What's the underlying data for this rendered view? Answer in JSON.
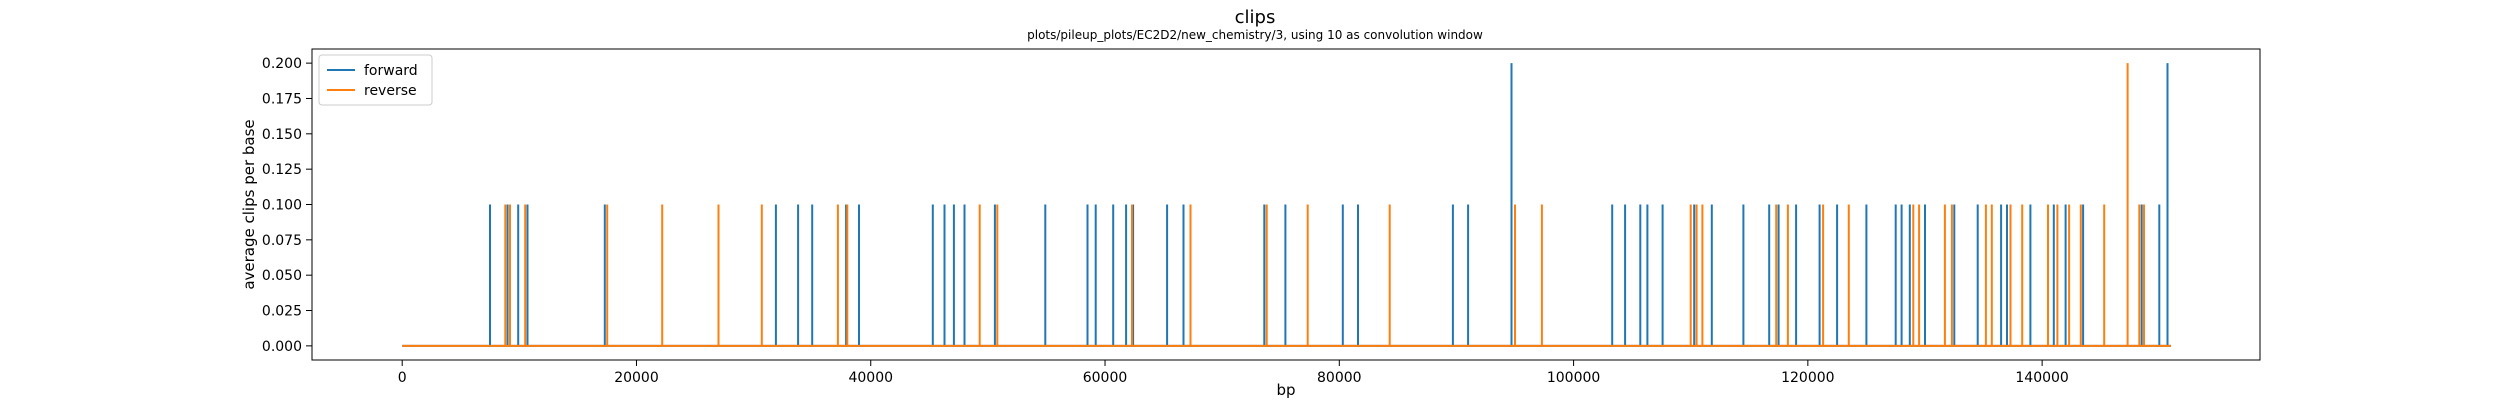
{
  "chart_data": {
    "type": "line",
    "title": "clips",
    "subtitle": "plots/pileup_plots/EC2D2/new_chemistry/3, using 10 as convolution window",
    "xlabel": "bp",
    "ylabel": "average clips per base",
    "xlim": [
      -7700,
      158600
    ],
    "ylim": [
      -0.01,
      0.21
    ],
    "x_ticks": [
      0,
      20000,
      40000,
      60000,
      80000,
      100000,
      120000,
      140000
    ],
    "x_tick_labels": [
      "0",
      "20000",
      "40000",
      "60000",
      "80000",
      "100000",
      "120000",
      "140000"
    ],
    "y_ticks": [
      0.0,
      0.025,
      0.05,
      0.075,
      0.1,
      0.125,
      0.15,
      0.175,
      0.2
    ],
    "y_tick_labels": [
      "0.000",
      "0.025",
      "0.050",
      "0.075",
      "0.100",
      "0.125",
      "0.150",
      "0.175",
      "0.200"
    ],
    "x_range": [
      0,
      151000
    ],
    "grid": false,
    "legend_position": "top-left",
    "series": [
      {
        "name": "forward",
        "color": "#1f77b4",
        "spikes": [
          [
            7500,
            0.1
          ],
          [
            9000,
            0.1
          ],
          [
            9900,
            0.1
          ],
          [
            10700,
            0.1
          ],
          [
            17300,
            0.1
          ],
          [
            31900,
            0.1
          ],
          [
            33800,
            0.1
          ],
          [
            35000,
            0.1
          ],
          [
            37900,
            0.1
          ],
          [
            39000,
            0.1
          ],
          [
            45300,
            0.1
          ],
          [
            46300,
            0.1
          ],
          [
            47100,
            0.1
          ],
          [
            48000,
            0.1
          ],
          [
            50600,
            0.1
          ],
          [
            54900,
            0.1
          ],
          [
            58500,
            0.1
          ],
          [
            59200,
            0.1
          ],
          [
            60700,
            0.1
          ],
          [
            61800,
            0.1
          ],
          [
            62400,
            0.1
          ],
          [
            65300,
            0.1
          ],
          [
            66700,
            0.1
          ],
          [
            73600,
            0.1
          ],
          [
            75400,
            0.1
          ],
          [
            80300,
            0.1
          ],
          [
            81600,
            0.1
          ],
          [
            89700,
            0.1
          ],
          [
            91000,
            0.1
          ],
          [
            94700,
            0.2
          ],
          [
            103300,
            0.1
          ],
          [
            104400,
            0.1
          ],
          [
            105700,
            0.1
          ],
          [
            106300,
            0.1
          ],
          [
            107600,
            0.1
          ],
          [
            110300,
            0.1
          ],
          [
            111800,
            0.1
          ],
          [
            114500,
            0.1
          ],
          [
            116700,
            0.1
          ],
          [
            117500,
            0.1
          ],
          [
            119000,
            0.1
          ],
          [
            121000,
            0.1
          ],
          [
            122500,
            0.1
          ],
          [
            125000,
            0.1
          ],
          [
            127500,
            0.1
          ],
          [
            128000,
            0.1
          ],
          [
            128700,
            0.1
          ],
          [
            130000,
            0.1
          ],
          [
            132500,
            0.1
          ],
          [
            134500,
            0.1
          ],
          [
            136500,
            0.1
          ],
          [
            137000,
            0.1
          ],
          [
            139000,
            0.1
          ],
          [
            141000,
            0.1
          ],
          [
            142000,
            0.1
          ],
          [
            143500,
            0.1
          ],
          [
            148500,
            0.1
          ],
          [
            150000,
            0.1
          ],
          [
            150700,
            0.2
          ]
        ]
      },
      {
        "name": "reverse",
        "color": "#ff7f0e",
        "spikes": [
          [
            8800,
            0.1
          ],
          [
            9200,
            0.1
          ],
          [
            10500,
            0.1
          ],
          [
            17500,
            0.1
          ],
          [
            22200,
            0.1
          ],
          [
            27000,
            0.1
          ],
          [
            30700,
            0.1
          ],
          [
            37200,
            0.1
          ],
          [
            38000,
            0.1
          ],
          [
            49300,
            0.1
          ],
          [
            50800,
            0.1
          ],
          [
            62300,
            0.1
          ],
          [
            67300,
            0.1
          ],
          [
            73800,
            0.1
          ],
          [
            77300,
            0.1
          ],
          [
            84300,
            0.1
          ],
          [
            95000,
            0.1
          ],
          [
            97300,
            0.1
          ],
          [
            110000,
            0.1
          ],
          [
            110500,
            0.1
          ],
          [
            111000,
            0.1
          ],
          [
            117300,
            0.1
          ],
          [
            118300,
            0.1
          ],
          [
            121300,
            0.1
          ],
          [
            123500,
            0.1
          ],
          [
            129000,
            0.1
          ],
          [
            129500,
            0.1
          ],
          [
            131700,
            0.1
          ],
          [
            132300,
            0.1
          ],
          [
            135200,
            0.1
          ],
          [
            135700,
            0.1
          ],
          [
            137300,
            0.1
          ],
          [
            138300,
            0.1
          ],
          [
            140500,
            0.1
          ],
          [
            141300,
            0.1
          ],
          [
            142300,
            0.1
          ],
          [
            143300,
            0.1
          ],
          [
            145300,
            0.1
          ],
          [
            147300,
            0.2
          ],
          [
            148300,
            0.1
          ],
          [
            148700,
            0.1
          ]
        ]
      }
    ]
  }
}
